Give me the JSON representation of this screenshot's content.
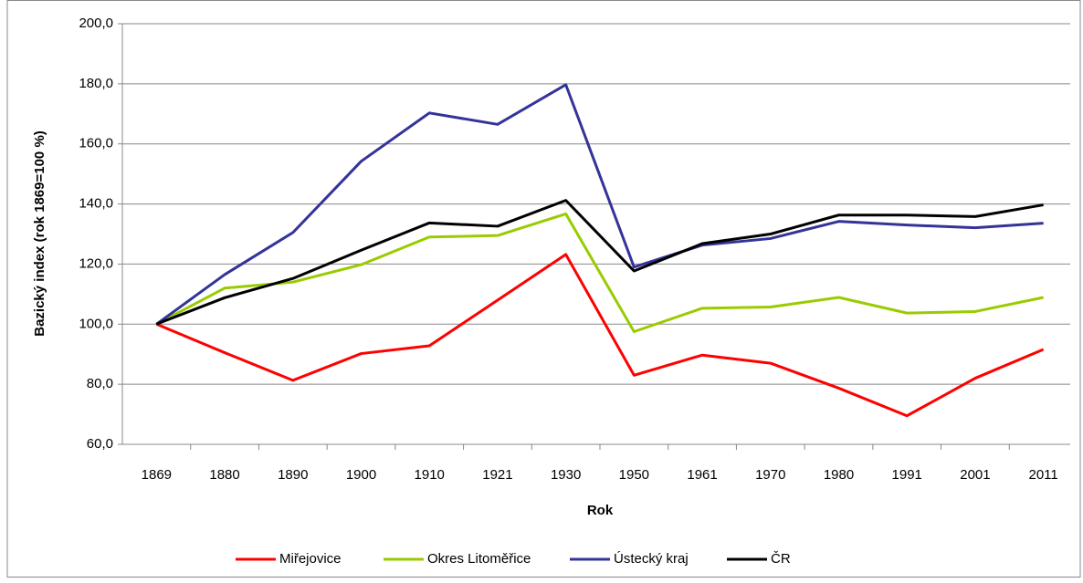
{
  "chart_data": {
    "type": "line",
    "x_label": "Rok",
    "y_label": "Bazický index (rok 1869=100 %)",
    "categories": [
      "1869",
      "1880",
      "1890",
      "1900",
      "1910",
      "1921",
      "1930",
      "1950",
      "1961",
      "1970",
      "1980",
      "1991",
      "2001",
      "2011"
    ],
    "series": [
      {
        "name": "Miřejovice",
        "color": "#ff0000",
        "values": [
          100,
          90.5,
          81.3,
          90.2,
          92.8,
          108,
          123.2,
          83,
          89.7,
          87,
          78.7,
          69.5,
          82,
          91.6
        ]
      },
      {
        "name": "Okres Litoměřice",
        "color": "#99cc00",
        "values": [
          100,
          112,
          114,
          119.8,
          129,
          129.5,
          136.7,
          97.5,
          105.3,
          105.7,
          108.9,
          103.7,
          104.2,
          108.9
        ]
      },
      {
        "name": "Ústecký kraj",
        "color": "#333399",
        "values": [
          100,
          116.5,
          130.5,
          154.2,
          170.3,
          166.5,
          179.7,
          119,
          126.3,
          128.5,
          134.2,
          133,
          132.1,
          133.6
        ]
      },
      {
        "name": "ČR",
        "color": "#000000",
        "values": [
          100,
          108.8,
          115.2,
          124.6,
          133.7,
          132.6,
          141.2,
          117.7,
          126.8,
          130,
          136.3,
          136.3,
          135.8,
          139.7
        ]
      }
    ],
    "ylim": [
      60,
      200
    ],
    "yticks": [
      {
        "value": 60,
        "label": "60,0"
      },
      {
        "value": 80,
        "label": "80,0"
      },
      {
        "value": 100,
        "label": "100,0"
      },
      {
        "value": 120,
        "label": "120,0"
      },
      {
        "value": 140,
        "label": "140,0"
      },
      {
        "value": 160,
        "label": "160,0"
      },
      {
        "value": 180,
        "label": "180,0"
      },
      {
        "value": 200,
        "label": "200,0"
      }
    ],
    "grid": true,
    "legend": "bottom"
  }
}
